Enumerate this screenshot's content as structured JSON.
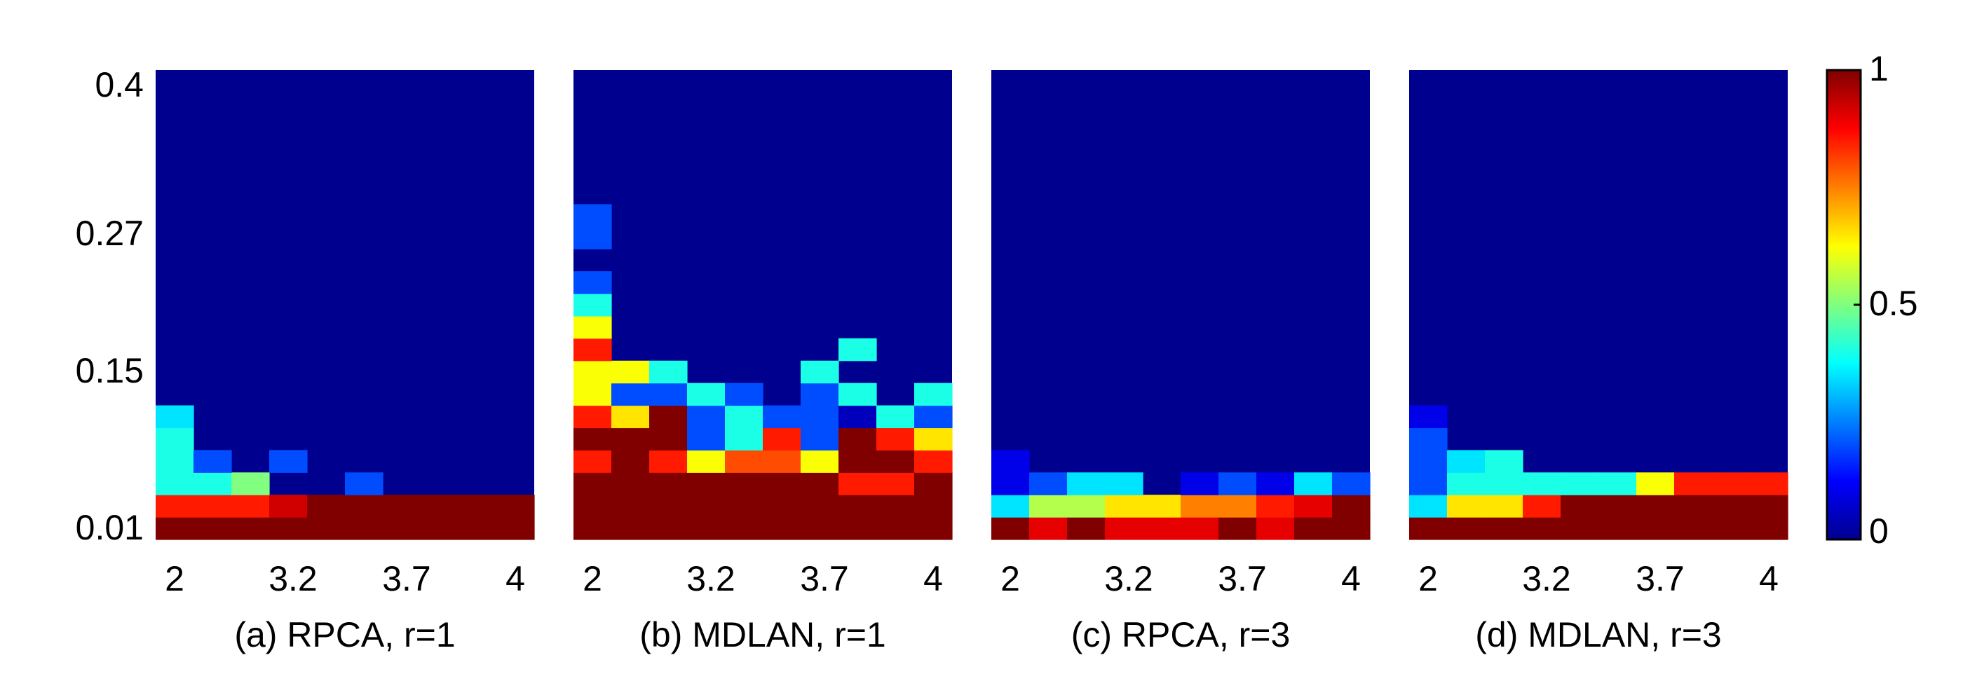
{
  "chart_data": {
    "type": "heatmap",
    "y_tick_labels": [
      "0.4",
      "0.27",
      "0.15",
      "0.01"
    ],
    "x_tick_labels": [
      "2",
      "3.2",
      "3.7",
      "4"
    ],
    "colorbar": {
      "colormap": "jet",
      "range": [
        0,
        1
      ],
      "tick_labels": [
        "1",
        "0.5",
        "0"
      ]
    },
    "panels": [
      {
        "caption": "(a) RPCA, r=1",
        "rows_bottom_to_top": [
          [
            1,
            1,
            1,
            1,
            1,
            1,
            1,
            1,
            1,
            1
          ],
          [
            0.85,
            0.85,
            0.85,
            0.92,
            1,
            1,
            1,
            1,
            1,
            1
          ],
          [
            0.4,
            0.4,
            0.5,
            0,
            0,
            0.2,
            0,
            0,
            0,
            0
          ],
          [
            0.4,
            0.2,
            0,
            0.2,
            0,
            0,
            0,
            0,
            0,
            0
          ],
          [
            0.4,
            0,
            0,
            0,
            0,
            0,
            0,
            0,
            0,
            0
          ],
          [
            0.35,
            0,
            0,
            0,
            0,
            0,
            0,
            0,
            0,
            0
          ]
        ]
      },
      {
        "caption": "(b) MDLAN, r=1",
        "rows_bottom_to_top": [
          [
            1,
            1,
            1,
            1,
            1,
            1,
            1,
            1,
            1,
            1
          ],
          [
            1,
            1,
            1,
            1,
            1,
            1,
            1,
            1,
            1,
            1
          ],
          [
            1,
            1,
            1,
            1,
            1,
            1,
            1,
            0.85,
            0.85,
            1
          ],
          [
            0.85,
            1,
            0.85,
            0.62,
            0.8,
            0.8,
            0.62,
            1,
            1,
            0.85
          ],
          [
            1,
            1,
            1,
            0.2,
            0.4,
            0.85,
            0.2,
            1,
            0.85,
            0.65
          ],
          [
            0.85,
            0.65,
            1,
            0.2,
            0.4,
            0.2,
            0.2,
            0.05,
            0.4,
            0.2
          ],
          [
            0.62,
            0.2,
            0.2,
            0.4,
            0.2,
            0,
            0.2,
            0.4,
            0,
            0.4
          ],
          [
            0.62,
            0.62,
            0.4,
            0,
            0,
            0,
            0.4,
            0,
            0,
            0
          ],
          [
            0.85,
            0,
            0,
            0,
            0,
            0,
            0,
            0.4,
            0,
            0
          ],
          [
            0.62,
            0,
            0,
            0,
            0,
            0,
            0,
            0,
            0,
            0
          ],
          [
            0.4,
            0,
            0,
            0,
            0,
            0,
            0,
            0,
            0,
            0
          ],
          [
            0.2,
            0,
            0,
            0,
            0,
            0,
            0,
            0,
            0,
            0
          ],
          [
            0,
            0,
            0,
            0,
            0,
            0,
            0,
            0,
            0,
            0
          ],
          [
            0.2,
            0,
            0,
            0,
            0,
            0,
            0,
            0,
            0,
            0
          ],
          [
            0.2,
            0,
            0,
            0,
            0,
            0,
            0,
            0,
            0,
            0
          ]
        ]
      },
      {
        "caption": "(c) RPCA, r=3",
        "rows_bottom_to_top": [
          [
            1,
            0.9,
            1,
            0.9,
            0.9,
            0.9,
            1,
            0.9,
            1,
            1
          ],
          [
            0.35,
            0.55,
            0.55,
            0.65,
            0.65,
            0.75,
            0.75,
            0.85,
            0.9,
            1
          ],
          [
            0.1,
            0.2,
            0.35,
            0.35,
            0,
            0.1,
            0.2,
            0.1,
            0.35,
            0.2
          ],
          [
            0.1,
            0,
            0,
            0,
            0,
            0,
            0,
            0,
            0,
            0
          ]
        ]
      },
      {
        "caption": "(d) MDLAN, r=3",
        "rows_bottom_to_top": [
          [
            1,
            1,
            1,
            1,
            1,
            1,
            1,
            1,
            1,
            1
          ],
          [
            0.35,
            0.65,
            0.65,
            0.85,
            1,
            1,
            1,
            1,
            1,
            1
          ],
          [
            0.2,
            0.4,
            0.4,
            0.4,
            0.4,
            0.4,
            0.62,
            0.85,
            0.85,
            0.85
          ],
          [
            0.2,
            0.35,
            0.4,
            0,
            0,
            0,
            0,
            0,
            0,
            0
          ],
          [
            0.2,
            0,
            0,
            0,
            0,
            0,
            0,
            0,
            0,
            0
          ],
          [
            0.1,
            0,
            0,
            0,
            0,
            0,
            0,
            0,
            0,
            0
          ]
        ]
      }
    ]
  }
}
